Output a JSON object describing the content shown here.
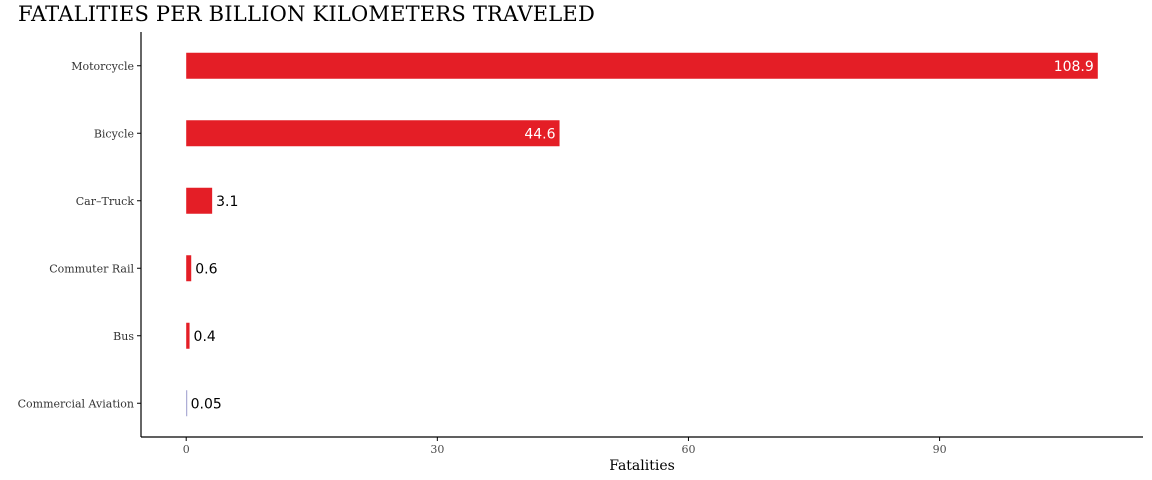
{
  "chart_data": {
    "type": "bar",
    "orientation": "horizontal",
    "title": "FATALITIES PER BILLION KILOMETERS TRAVELED",
    "xlabel": "Fatalities",
    "ylabel": "",
    "categories": [
      "Motorcycle",
      "Bicycle",
      "Car–Truck",
      "Commuter Rail",
      "Bus",
      "Commercial Aviation"
    ],
    "values": [
      108.9,
      44.6,
      3.1,
      0.6,
      0.4,
      0.05
    ],
    "value_labels": [
      "108.9",
      "44.6",
      "3.1",
      "0.6",
      "0.4",
      "0.05"
    ],
    "xticks": [
      0,
      30,
      60,
      90
    ],
    "xtick_labels": [
      "0",
      "30",
      "60",
      "90"
    ],
    "xlim": [
      -5.4,
      114.3
    ],
    "grid": false,
    "legend": "none",
    "colors": {
      "bar": "#E41E26",
      "aviation_bar": "#9999CC",
      "label_inside": "#FFFFFF",
      "label_outside": "#000000",
      "axis": "#000000"
    }
  }
}
